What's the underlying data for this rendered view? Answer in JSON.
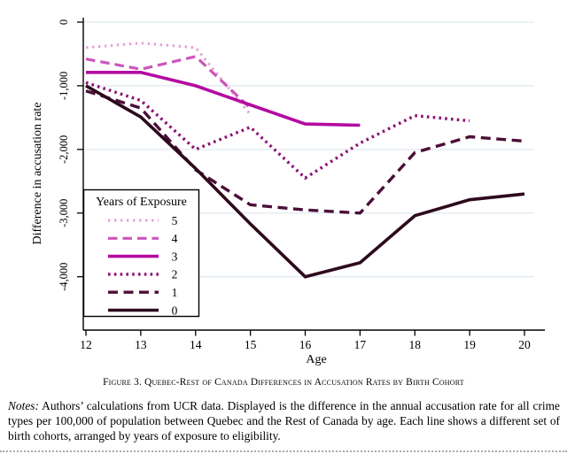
{
  "caption": "Figure 3. Quebec-Rest of Canada Differences in Accusation Rates by Birth Cohort",
  "notes": {
    "label": "Notes:",
    "text": "Authors’ calculations from UCR data. Displayed is the difference in the annual accusation rate for all crime types per 100,000 of population between Quebec and the Rest of Canada by age. Each line shows a different set of birth cohorts, arranged by years of exposure to eligibility."
  },
  "chart_data": {
    "type": "line",
    "xlabel": "Age",
    "ylabel": "Difference in accusation rate",
    "xlim": [
      12,
      20
    ],
    "ylim": [
      -4300,
      100
    ],
    "grid": true,
    "x_ticks": [
      12,
      13,
      14,
      15,
      16,
      17,
      18,
      19,
      20
    ],
    "y_ticks": [
      {
        "value": 0,
        "label": "0"
      },
      {
        "value": -1000,
        "label": "-1,000"
      },
      {
        "value": -2000,
        "label": "-2,000"
      },
      {
        "value": -3000,
        "label": "-3,000"
      },
      {
        "value": -4000,
        "label": "-4,000"
      }
    ],
    "legend": {
      "title": "Years of Exposure",
      "position": "bottom-left"
    },
    "series": [
      {
        "name": "5",
        "exposure_years": 5,
        "style": "dotted",
        "color": "#e6a0d7",
        "x": [
          12,
          13,
          14,
          15
        ],
        "y": [
          -400,
          -330,
          -400,
          -1450
        ]
      },
      {
        "name": "4",
        "exposure_years": 4,
        "style": "dashed",
        "color": "#cd55b9",
        "x": [
          12,
          13,
          14,
          15
        ],
        "y": [
          -580,
          -740,
          -540,
          -1350
        ]
      },
      {
        "name": "3",
        "exposure_years": 3,
        "style": "solid",
        "color": "#b40aa0",
        "x": [
          12,
          13,
          14,
          15,
          16,
          17
        ],
        "y": [
          -790,
          -790,
          -1000,
          -1300,
          -1600,
          -1620
        ]
      },
      {
        "name": "2",
        "exposure_years": 2,
        "style": "dotted",
        "color": "#8c0f73",
        "x": [
          12,
          13,
          14,
          15,
          16,
          17,
          18,
          19
        ],
        "y": [
          -950,
          -1230,
          -2000,
          -1650,
          -2450,
          -1900,
          -1470,
          -1550
        ]
      },
      {
        "name": "1",
        "exposure_years": 1,
        "style": "dashed",
        "color": "#4b0f37",
        "x": [
          12,
          13,
          14,
          15,
          16,
          17,
          18,
          19,
          20
        ],
        "y": [
          -1080,
          -1350,
          -2320,
          -2870,
          -2950,
          -3000,
          -2050,
          -1800,
          -1870
        ]
      },
      {
        "name": "0",
        "exposure_years": 0,
        "style": "solid",
        "color": "#2d0a1e",
        "x": [
          12,
          13,
          14,
          15,
          16,
          17,
          18,
          19,
          20
        ],
        "y": [
          -1000,
          -1490,
          -2300,
          -3170,
          -4000,
          -3780,
          -3040,
          -2790,
          -2700
        ]
      }
    ]
  }
}
